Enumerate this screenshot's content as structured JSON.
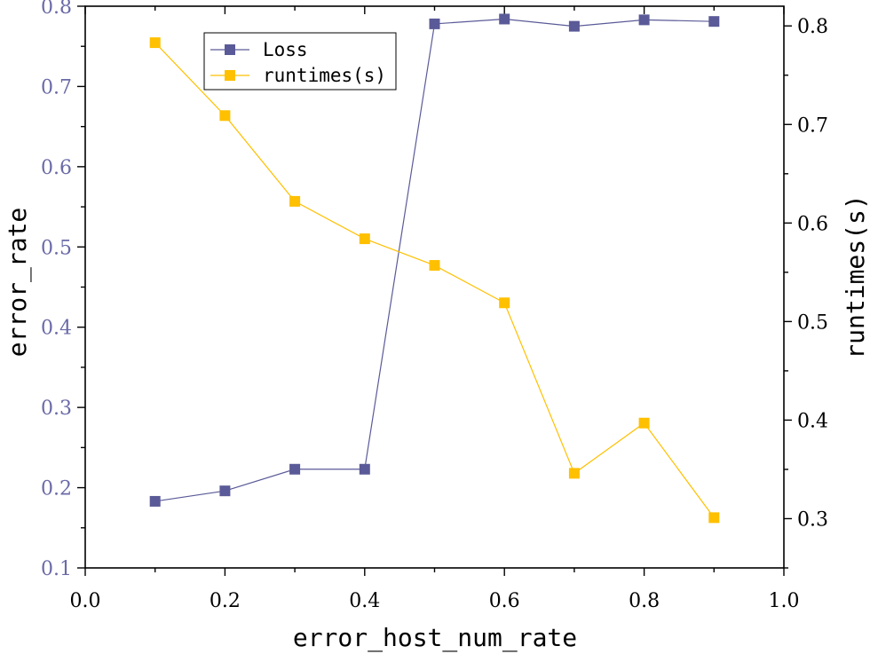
{
  "chart_data": {
    "type": "line",
    "title": "",
    "xlabel": "error_host_num_rate",
    "ylabel_left": "error_rate",
    "ylabel_right": "runtimes(s)",
    "x": [
      0.1,
      0.2,
      0.3,
      0.4,
      0.5,
      0.6,
      0.7,
      0.8,
      0.9
    ],
    "xlim": [
      0.0,
      1.0
    ],
    "ylim_left": [
      0.1,
      0.8
    ],
    "ylim_right": [
      0.25,
      0.82
    ],
    "x_ticks": [
      0.0,
      0.2,
      0.4,
      0.6,
      0.8,
      1.0
    ],
    "x_tick_labels": [
      "0.0",
      "0.2",
      "0.4",
      "0.6",
      "0.8",
      "1.0"
    ],
    "y_left_ticks": [
      0.1,
      0.2,
      0.3,
      0.4,
      0.5,
      0.6,
      0.7,
      0.8
    ],
    "y_left_tick_labels": [
      "0.1",
      "0.2",
      "0.3",
      "0.4",
      "0.5",
      "0.6",
      "0.7",
      "0.8"
    ],
    "y_right_ticks": [
      0.3,
      0.4,
      0.5,
      0.6,
      0.7,
      0.8
    ],
    "y_right_tick_labels": [
      "0.3",
      "0.4",
      "0.5",
      "0.6",
      "0.7",
      "0.8"
    ],
    "legend_position": "top-left",
    "grid": false,
    "series": [
      {
        "name": "Loss",
        "axis": "left",
        "color": "#5a5a98",
        "marker": "square",
        "values": [
          0.183,
          0.196,
          0.223,
          0.223,
          0.778,
          0.784,
          0.775,
          0.783,
          0.781
        ]
      },
      {
        "name": "runtimes(s)",
        "axis": "right",
        "color": "#ffc000",
        "marker": "square",
        "values": [
          0.783,
          0.709,
          0.622,
          0.584,
          0.557,
          0.519,
          0.346,
          0.397,
          0.301
        ]
      }
    ],
    "colors": {
      "left_axis_labels": "#6a6aa8",
      "axis": "#000000"
    }
  }
}
